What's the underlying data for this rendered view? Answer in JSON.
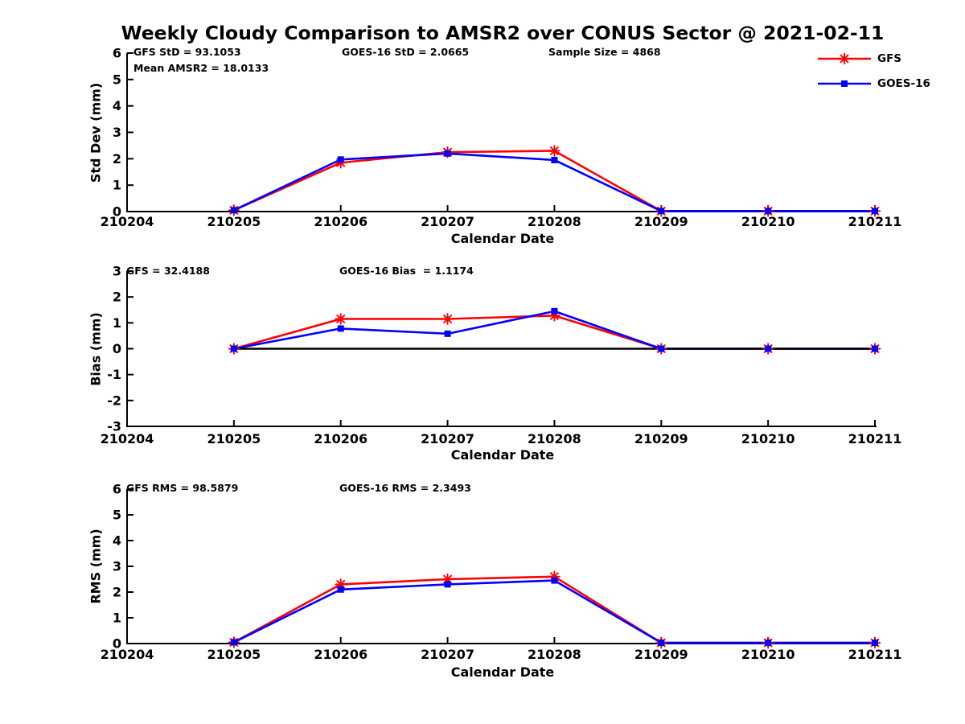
{
  "title": "Weekly Cloudy Comparison to AMSR2 over CONUS Sector @ 2021-02-11",
  "colors": {
    "gfs": "#ff0000",
    "goes16": "#0000ff",
    "axis": "#000000",
    "zero_line": "#000000",
    "background": "#ffffff"
  },
  "legend": {
    "items": [
      {
        "label": "GFS",
        "color": "#ff0000",
        "marker": "asterisk"
      },
      {
        "label": "GOES-16",
        "color": "#0000ff",
        "marker": "square"
      }
    ]
  },
  "x_axis": {
    "label": "Calendar Date",
    "ticks": [
      "210204",
      "210205",
      "210206",
      "210207",
      "210208",
      "210209",
      "210210",
      "210211"
    ]
  },
  "chart_data": [
    {
      "type": "line",
      "panel": "std-dev",
      "ylabel": "Std Dev (mm)",
      "xlabel": "Calendar Date",
      "ylim": [
        0,
        6
      ],
      "yticks": [
        0,
        1,
        2,
        3,
        4,
        5,
        6
      ],
      "x": [
        "210205",
        "210206",
        "210207",
        "210208",
        "210209",
        "210210",
        "210211"
      ],
      "series": [
        {
          "name": "GFS",
          "color": "#ff0000",
          "marker": "asterisk",
          "values": [
            0.05,
            1.85,
            2.25,
            2.3,
            0.02,
            0.02,
            0.02
          ]
        },
        {
          "name": "GOES-16",
          "color": "#0000ff",
          "marker": "square",
          "values": [
            0.05,
            1.97,
            2.2,
            1.95,
            0.02,
            0.02,
            0.02
          ]
        }
      ],
      "annotations": [
        "GFS StD = 93.1053",
        "Mean AMSR2 = 18.0133",
        "GOES-16 StD = 2.0665",
        "Sample Size = 4868"
      ],
      "zero_line": false,
      "grid": false,
      "legend_position": "upper-right-outside"
    },
    {
      "type": "line",
      "panel": "bias",
      "ylabel": "Bias (mm)",
      "xlabel": "Calendar Date",
      "ylim": [
        -3,
        3
      ],
      "yticks": [
        -3,
        -2,
        -1,
        0,
        1,
        2,
        3
      ],
      "x": [
        "210205",
        "210206",
        "210207",
        "210208",
        "210209",
        "210210",
        "210211"
      ],
      "series": [
        {
          "name": "GFS",
          "color": "#ff0000",
          "marker": "asterisk",
          "values": [
            0.0,
            1.15,
            1.15,
            1.28,
            0.0,
            0.0,
            0.0
          ]
        },
        {
          "name": "GOES-16",
          "color": "#0000ff",
          "marker": "square",
          "values": [
            0.0,
            0.78,
            0.58,
            1.45,
            0.0,
            0.0,
            0.0
          ]
        }
      ],
      "annotations": [
        "GFS = 32.4188",
        "GOES-16 Bias  = 1.1174"
      ],
      "zero_line": true,
      "grid": false
    },
    {
      "type": "line",
      "panel": "rms",
      "ylabel": "RMS (mm)",
      "xlabel": "Calendar Date",
      "ylim": [
        0,
        6
      ],
      "yticks": [
        0,
        1,
        2,
        3,
        4,
        5,
        6
      ],
      "x": [
        "210205",
        "210206",
        "210207",
        "210208",
        "210209",
        "210210",
        "210211"
      ],
      "series": [
        {
          "name": "GFS",
          "color": "#ff0000",
          "marker": "asterisk",
          "values": [
            0.05,
            2.3,
            2.5,
            2.6,
            0.03,
            0.03,
            0.03
          ]
        },
        {
          "name": "GOES-16",
          "color": "#0000ff",
          "marker": "square",
          "values": [
            0.05,
            2.1,
            2.3,
            2.45,
            0.03,
            0.03,
            0.03
          ]
        }
      ],
      "annotations": [
        "GFS RMS = 98.5879",
        "GOES-16 RMS = 2.3493"
      ],
      "zero_line": false,
      "grid": false
    }
  ]
}
